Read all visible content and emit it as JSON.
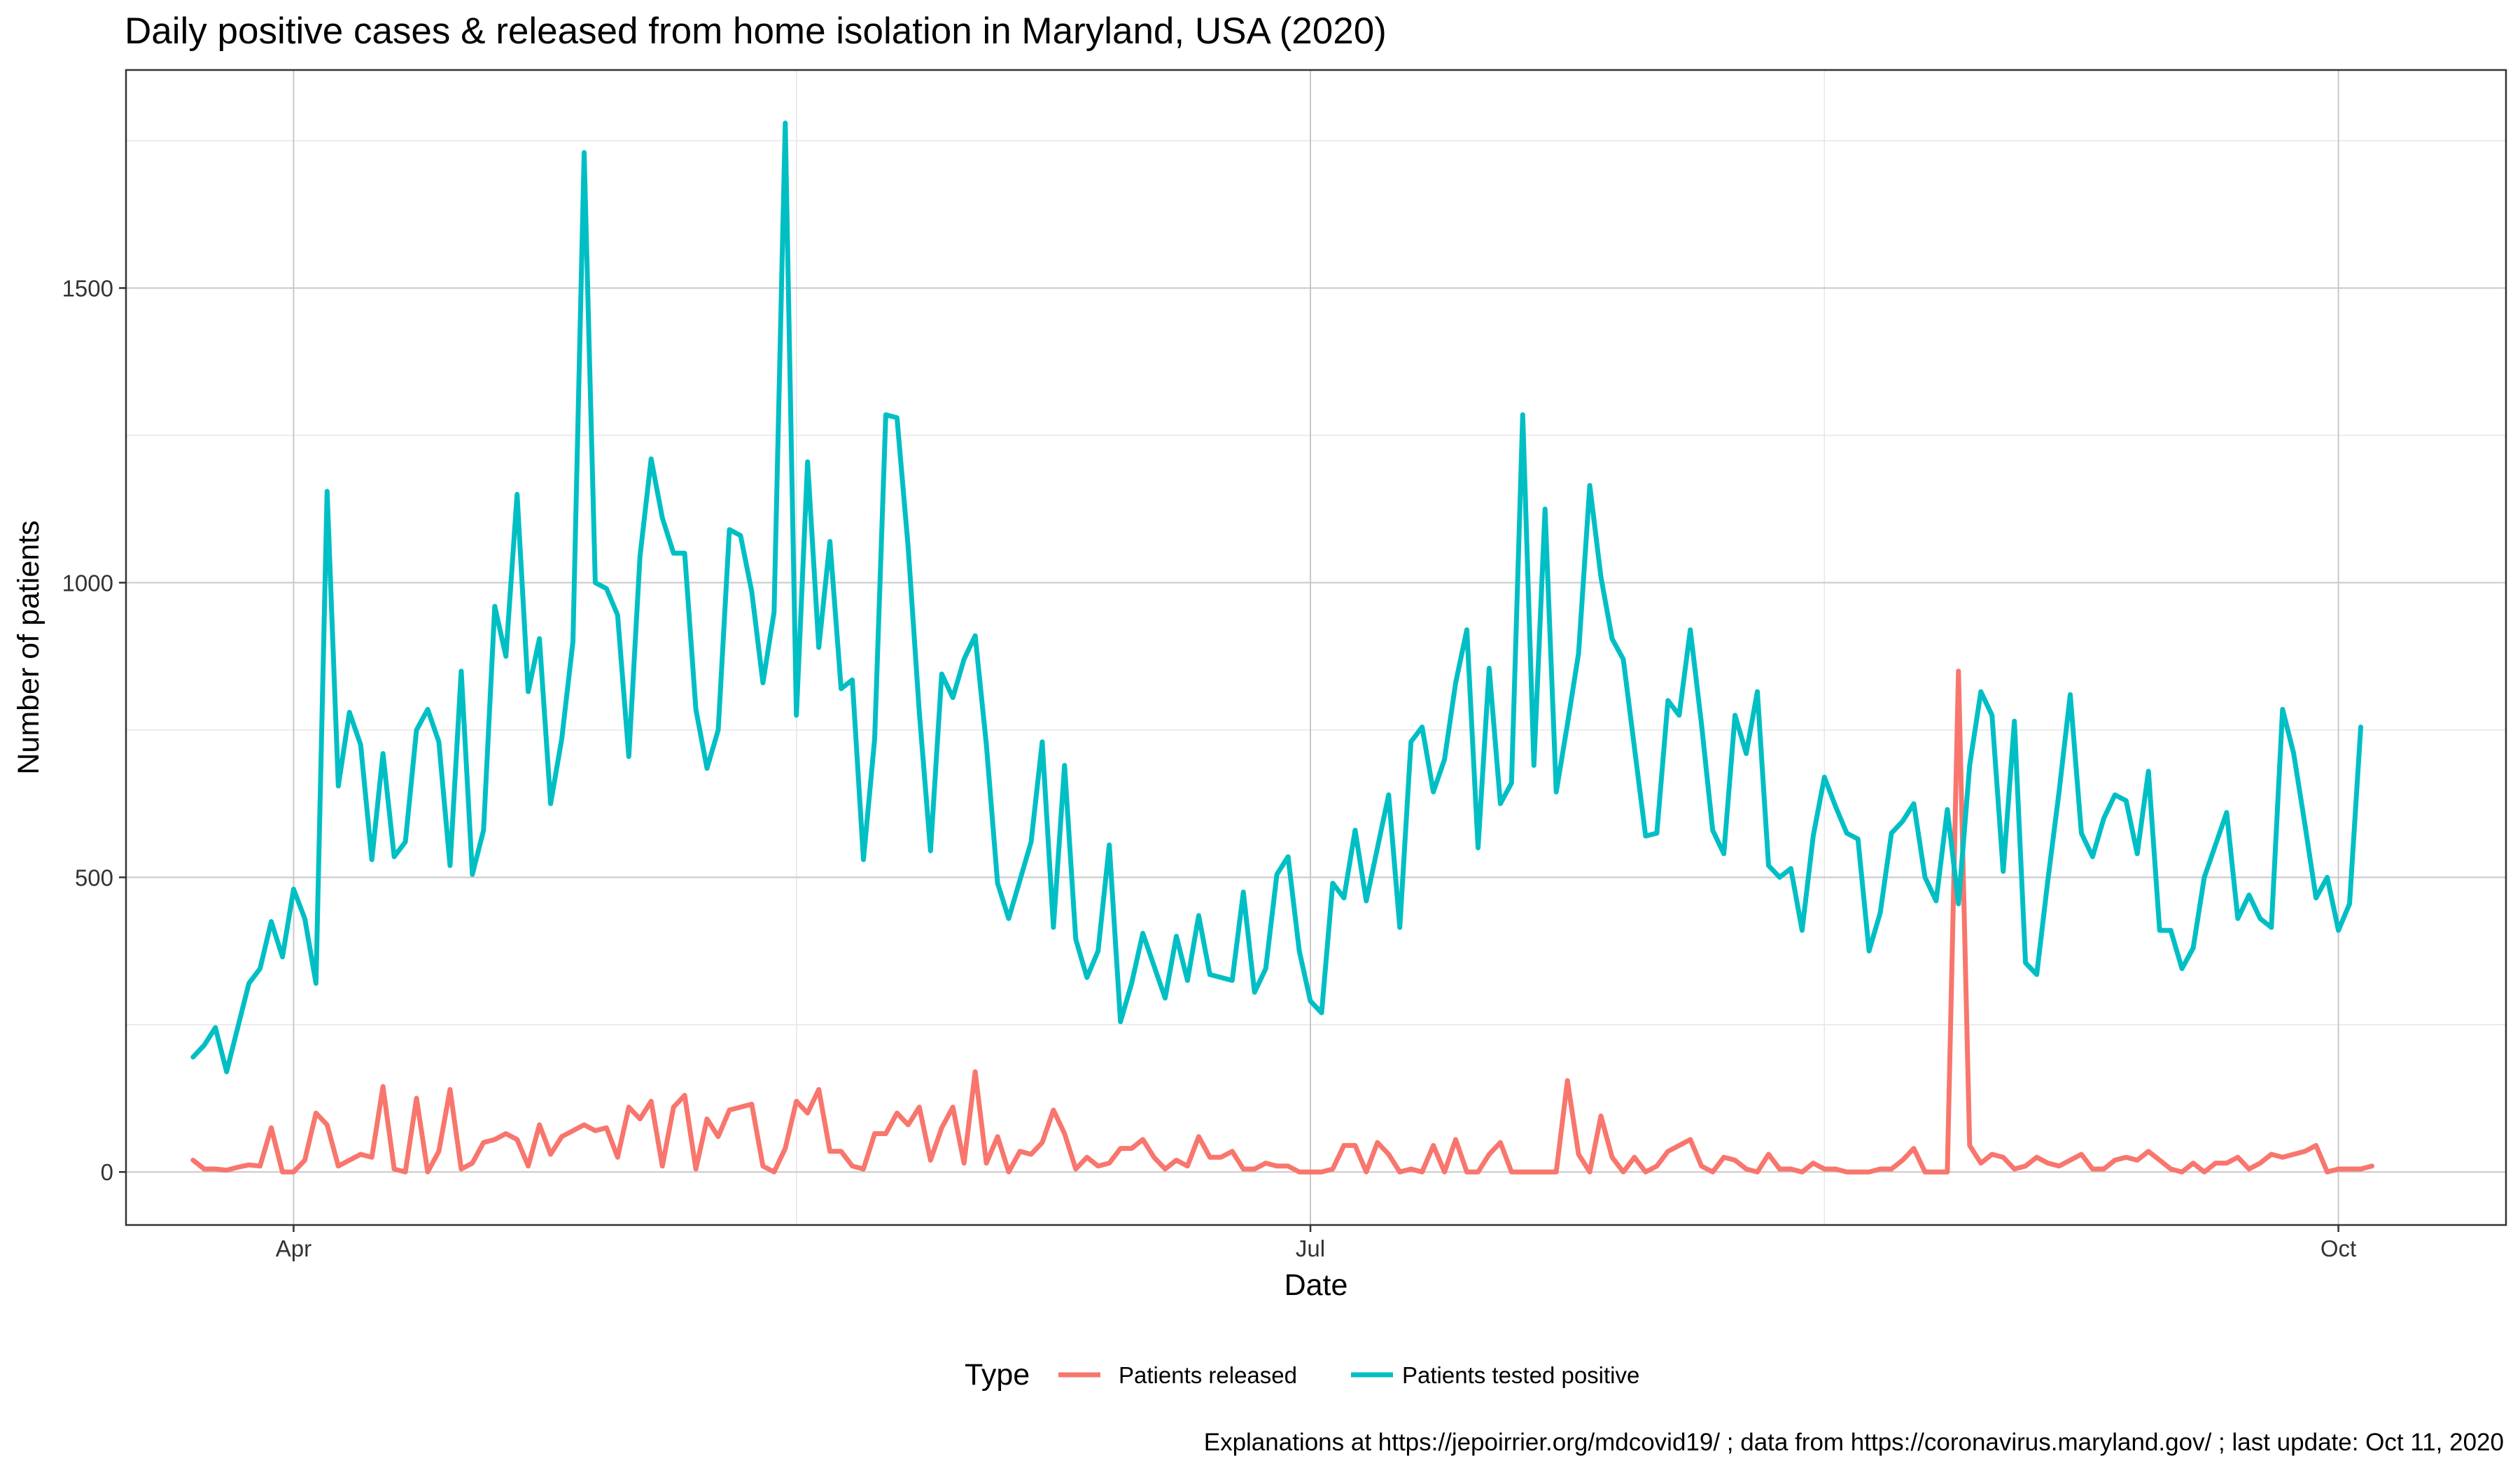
{
  "chart_data": {
    "type": "line",
    "title": "Daily positive cases & released from home isolation in Maryland, USA (2020)",
    "xlabel": "Date",
    "ylabel": "Number of patients",
    "x_start": "2020-03-23",
    "xlim": [
      "2020-03-17",
      "2020-10-16"
    ],
    "ylim": [
      -90,
      1870
    ],
    "x_ticks": [
      {
        "label": "Apr",
        "date": "2020-04-01"
      },
      {
        "label": "Jul",
        "date": "2020-07-01"
      },
      {
        "label": "Oct",
        "date": "2020-10-01"
      }
    ],
    "x_minor_ticks": [
      "2020-05-16",
      "2020-08-16"
    ],
    "y_ticks": [
      0,
      500,
      1000,
      1500
    ],
    "y_minor_ticks": [
      250,
      750,
      1250,
      1750
    ],
    "grid": true,
    "legend": {
      "title": "Type",
      "position": "bottom"
    },
    "series": [
      {
        "name": "Patients released",
        "color": "#F8766D",
        "values": [
          20,
          5,
          5,
          3,
          8,
          12,
          10,
          75,
          0,
          0,
          20,
          100,
          80,
          10,
          20,
          30,
          25,
          145,
          5,
          0,
          125,
          0,
          35,
          140,
          5,
          15,
          50,
          55,
          65,
          55,
          10,
          80,
          30,
          60,
          70,
          80,
          70,
          75,
          25,
          110,
          90,
          120,
          10,
          110,
          130,
          5,
          90,
          60,
          105,
          110,
          115,
          10,
          0,
          40,
          120,
          100,
          140,
          35,
          35,
          10,
          5,
          65,
          65,
          100,
          80,
          110,
          20,
          75,
          110,
          15,
          170,
          15,
          60,
          0,
          35,
          30,
          50,
          105,
          65,
          5,
          25,
          10,
          15,
          40,
          40,
          55,
          25,
          5,
          20,
          10,
          60,
          25,
          25,
          35,
          5,
          5,
          15,
          10,
          10,
          0,
          0,
          0,
          5,
          45,
          45,
          0,
          50,
          30,
          0,
          5,
          0,
          45,
          0,
          55,
          0,
          0,
          30,
          50,
          0,
          0,
          0,
          0,
          0,
          155,
          30,
          0,
          95,
          25,
          0,
          25,
          0,
          10,
          35,
          45,
          55,
          10,
          0,
          25,
          20,
          5,
          0,
          30,
          5,
          5,
          0,
          15,
          5,
          5,
          0,
          0,
          0,
          5,
          5,
          20,
          40,
          0,
          0,
          0,
          850,
          45,
          15,
          30,
          25,
          5,
          10,
          25,
          15,
          10,
          20,
          30,
          5,
          5,
          20,
          25,
          20,
          35,
          20,
          5,
          0,
          15,
          0,
          15,
          15,
          25,
          5,
          15,
          30,
          25,
          30,
          35,
          45,
          0,
          5,
          5,
          5,
          10
        ]
      },
      {
        "name": "Patients tested positive",
        "color": "#00BFC4",
        "values": [
          195,
          215,
          245,
          170,
          245,
          320,
          345,
          425,
          365,
          480,
          430,
          320,
          1155,
          655,
          780,
          725,
          530,
          710,
          535,
          560,
          750,
          785,
          730,
          520,
          850,
          505,
          580,
          960,
          875,
          1150,
          815,
          905,
          625,
          735,
          900,
          1730,
          1000,
          990,
          945,
          705,
          1045,
          1210,
          1110,
          1050,
          1050,
          785,
          685,
          750,
          1090,
          1080,
          985,
          830,
          950,
          1780,
          775,
          1205,
          890,
          1070,
          820,
          835,
          530,
          735,
          1285,
          1280,
          1060,
          780,
          545,
          845,
          805,
          870,
          910,
          725,
          490,
          430,
          495,
          560,
          730,
          415,
          690,
          395,
          330,
          375,
          555,
          255,
          320,
          405,
          350,
          295,
          400,
          325,
          435,
          335,
          330,
          325,
          475,
          305,
          345,
          505,
          535,
          375,
          290,
          270,
          490,
          465,
          580,
          460,
          550,
          640,
          415,
          730,
          755,
          645,
          700,
          830,
          920,
          550,
          855,
          625,
          660,
          1285,
          690,
          1125,
          645,
          760,
          880,
          1165,
          1010,
          905,
          870,
          720,
          570,
          575,
          800,
          775,
          920,
          760,
          580,
          540,
          775,
          710,
          815,
          520,
          500,
          515,
          410,
          570,
          670,
          620,
          575,
          565,
          375,
          440,
          575,
          595,
          625,
          500,
          460,
          615,
          455,
          690,
          815,
          775,
          510,
          765,
          355,
          335,
          495,
          645,
          810,
          575,
          535,
          600,
          640,
          630,
          540,
          680,
          410,
          410,
          345,
          380,
          500,
          555,
          610,
          430,
          470,
          430,
          415,
          785,
          710,
          590,
          465,
          500,
          410,
          455,
          755
        ]
      }
    ],
    "caption": "Explanations at https://jepoirrier.org/mdcovid19/ ; data from https://coronavirus.maryland.gov/ ; last update: Oct 11, 2020"
  }
}
